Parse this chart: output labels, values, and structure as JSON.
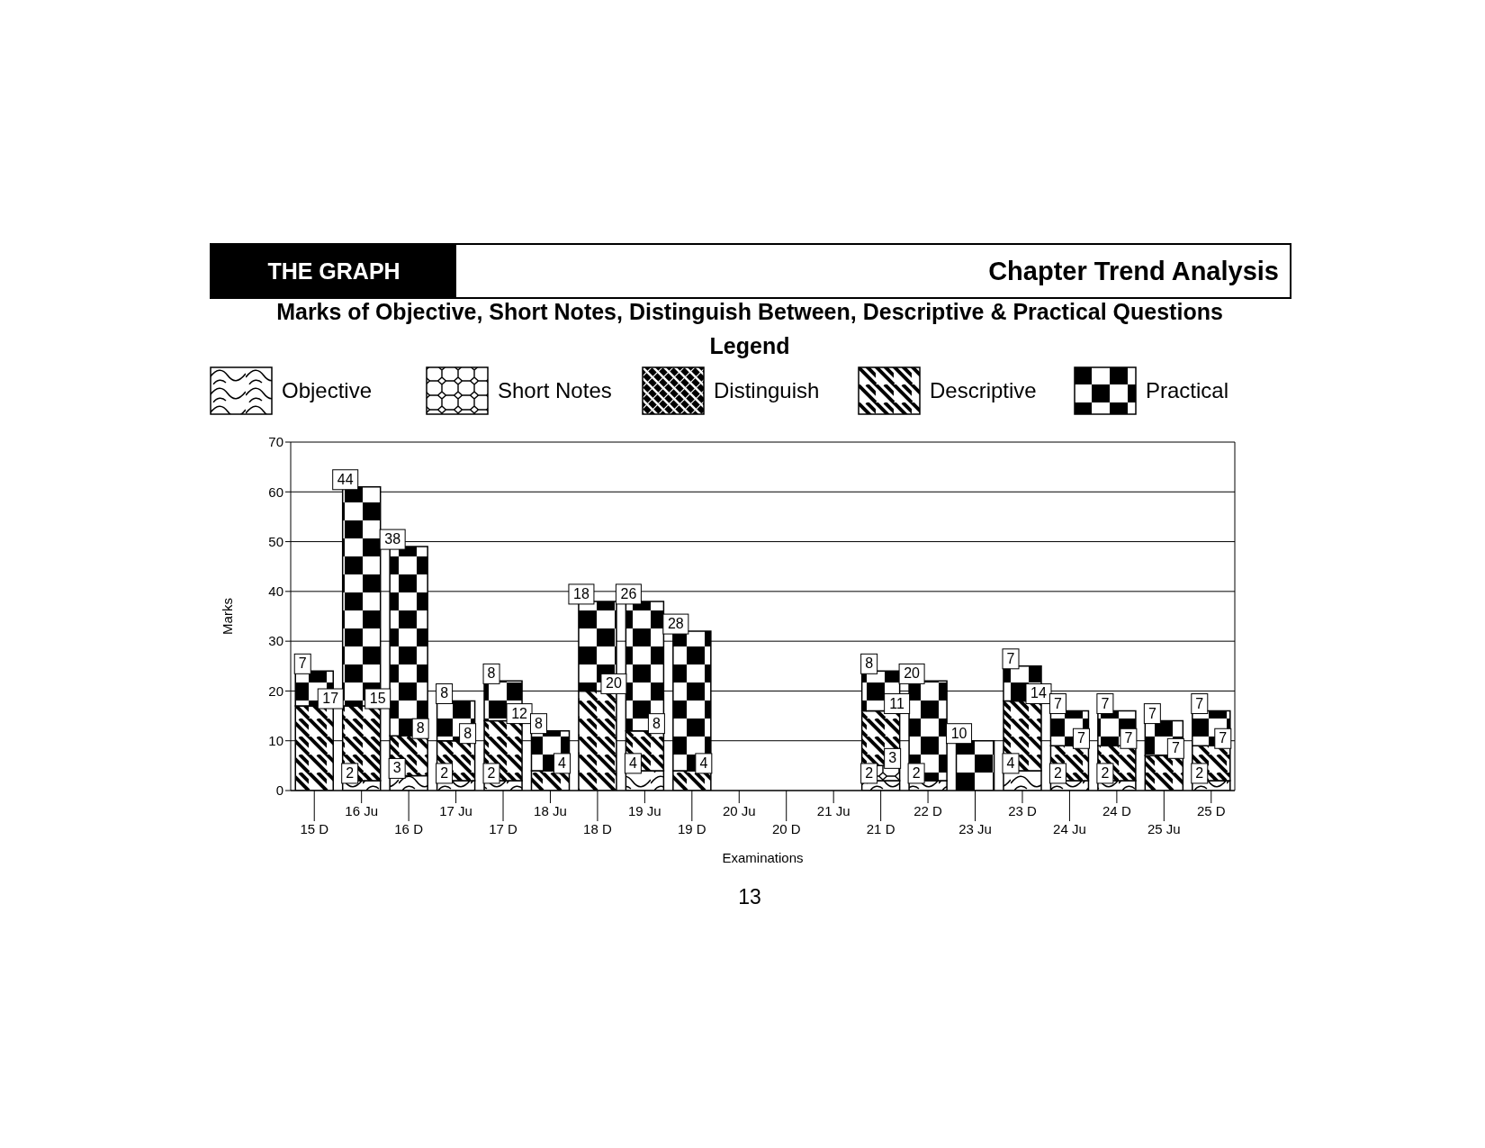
{
  "chart_data": {
    "type": "bar",
    "title": "Marks of Objective, Short Notes, Distinguish Between, Descriptive & Practical Questions",
    "annotations": [
      "THE GRAPH",
      "Chapter Trend Analysis",
      "13"
    ],
    "legend_title": "Legend",
    "xlabel": "Examinations",
    "ylabel": "Marks",
    "categories": [
      "15 D",
      "16 Ju",
      "16 D",
      "17 Ju",
      "17 D",
      "18 Ju",
      "18 D",
      "19 Ju",
      "19 D",
      "20 Ju",
      "20 D",
      "21 Ju",
      "21 D",
      "22 D",
      "23 Ju",
      "23 D",
      "24 Ju",
      "24 D",
      "25 Ju",
      "25 D"
    ],
    "stacked": true,
    "series": [
      {
        "name": "Objective",
        "color": "#000000",
        "values": [
          null,
          2,
          3,
          2,
          2,
          null,
          null,
          4,
          null,
          null,
          null,
          null,
          2,
          2,
          null,
          4,
          2,
          2,
          null,
          2
        ]
      },
      {
        "name": "Short Notes",
        "color": "#000000",
        "values": [
          null,
          null,
          null,
          null,
          null,
          null,
          null,
          null,
          null,
          null,
          null,
          null,
          3,
          null,
          null,
          null,
          null,
          null,
          null,
          null
        ]
      },
      {
        "name": "Distinguish",
        "color": "#000000",
        "values": [
          null,
          null,
          null,
          null,
          null,
          null,
          null,
          null,
          null,
          null,
          null,
          null,
          null,
          null,
          null,
          null,
          null,
          null,
          null,
          null
        ]
      },
      {
        "name": "Descriptive",
        "color": "#000000",
        "values": [
          17,
          15,
          8,
          8,
          12,
          4,
          20,
          8,
          4,
          null,
          null,
          null,
          11,
          null,
          null,
          14,
          7,
          7,
          7,
          7
        ]
      },
      {
        "name": "Practical",
        "color": "#000000",
        "values": [
          7,
          44,
          38,
          8,
          8,
          8,
          18,
          26,
          28,
          null,
          null,
          null,
          8,
          20,
          10,
          7,
          7,
          7,
          7,
          7
        ]
      }
    ],
    "ylim": [
      0,
      70
    ],
    "yticks": [
      0,
      10,
      20,
      30,
      40,
      50,
      60,
      70
    ],
    "grid": "y",
    "legend": "top",
    "data_labels": true
  }
}
